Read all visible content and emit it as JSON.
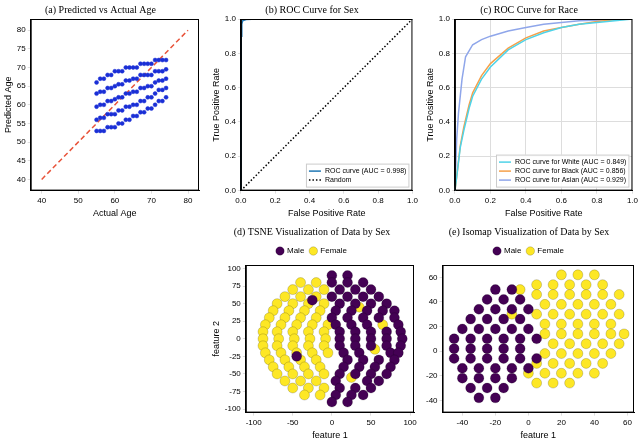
{
  "chart_data": [
    {
      "type": "scatter",
      "title": "(a) Predicted vs Actual Age",
      "x_label": "Actual Age",
      "y_label": "Predicted Age",
      "xlim": [
        37,
        83
      ],
      "xticks": [
        40,
        50,
        60,
        70,
        80
      ],
      "ylim": [
        37,
        83
      ],
      "yticks": [
        40,
        45,
        50,
        55,
        60,
        65,
        70,
        75,
        80
      ],
      "grid": false,
      "series": [
        {
          "color": "#1a2fd6",
          "marker": "circle",
          "x": [
            55,
            55,
            55,
            55,
            55,
            56,
            56,
            56,
            56,
            56,
            57,
            57,
            57,
            57,
            57,
            58,
            58,
            58,
            58,
            58,
            59,
            59,
            59,
            59,
            59,
            60,
            60,
            60,
            60,
            60,
            61,
            61,
            61,
            61,
            61,
            62,
            62,
            62,
            62,
            62,
            63,
            63,
            63,
            63,
            63,
            64,
            64,
            64,
            64,
            64,
            65,
            65,
            65,
            65,
            65,
            66,
            66,
            66,
            66,
            66,
            67,
            67,
            67,
            67,
            67,
            68,
            68,
            68,
            68,
            68,
            69,
            69,
            69,
            69,
            69,
            70,
            70,
            70,
            70,
            70,
            71,
            71,
            71,
            71,
            71,
            72,
            72,
            72,
            72,
            72,
            73,
            73,
            73,
            73,
            73,
            74,
            74,
            74,
            74,
            74
          ],
          "values": [
            53,
            56,
            59.5,
            63,
            66,
            53,
            56.5,
            60,
            63.5,
            67,
            53,
            56.5,
            60,
            63.5,
            67,
            54,
            57.5,
            61,
            64.5,
            68,
            54,
            57.5,
            61,
            64.5,
            68,
            54,
            57.5,
            61.5,
            65,
            69,
            55,
            58.5,
            62,
            65.5,
            69,
            55,
            58.5,
            62,
            65.5,
            69,
            56,
            59.5,
            63,
            66.5,
            70,
            56,
            59.5,
            63,
            66.5,
            70,
            57,
            60,
            63.5,
            67,
            70,
            57,
            60,
            63.5,
            67,
            70,
            58,
            61,
            64.5,
            68,
            71,
            58,
            61,
            64.5,
            68,
            71,
            59,
            62,
            65,
            68,
            71,
            59,
            62,
            65,
            68,
            71,
            60,
            63,
            66,
            69,
            72,
            61,
            64,
            66.5,
            69,
            72,
            61,
            64,
            66.5,
            69,
            72,
            62,
            64.5,
            67,
            69.5,
            72
          ]
        },
        {
          "type": "line",
          "color": "#e8533a",
          "line_style": "dashed",
          "x": [
            40,
            80
          ],
          "values": [
            40,
            80
          ]
        }
      ]
    },
    {
      "type": "line",
      "title": "(b) ROC Curve for Sex",
      "x_label": "False Positive Rate",
      "y_label": "True Positive Rate",
      "xlim": [
        0,
        1
      ],
      "xticks": [
        {
          "value": 0,
          "label": "0.0"
        },
        0.2,
        0.4,
        0.6,
        0.8,
        {
          "value": 1,
          "label": "1.0"
        }
      ],
      "ylim": [
        0,
        1
      ],
      "yticks": [
        {
          "value": 0,
          "label": "0.0"
        },
        0.2,
        0.4,
        0.6,
        0.8,
        {
          "value": 1,
          "label": "1.0"
        }
      ],
      "grid": false,
      "legend": "lower right",
      "series": [
        {
          "name": "ROC curve (AUC = 0.998)",
          "color": "#1f77b4",
          "line_style": "solid",
          "x": [
            0,
            0.002,
            0.005,
            0.01,
            0.03,
            0.1,
            1
          ],
          "values": [
            0,
            0.9,
            0.97,
            0.99,
            0.997,
            1,
            1
          ]
        },
        {
          "name": "Random",
          "color": "#000000",
          "line_style": "dotted",
          "x": [
            0,
            1
          ],
          "values": [
            0,
            1
          ]
        }
      ]
    },
    {
      "type": "line",
      "title": "(c) ROC Curve for Race",
      "x_label": "False Positive Rate",
      "y_label": "True Positive Rate",
      "xlim": [
        0,
        1
      ],
      "xticks": [
        {
          "value": 0,
          "label": "0.0"
        },
        0.2,
        0.4,
        0.6,
        0.8,
        {
          "value": 1,
          "label": "1.0"
        }
      ],
      "ylim": [
        0,
        1
      ],
      "yticks": [
        {
          "value": 0,
          "label": "0.0"
        },
        0.2,
        0.4,
        0.6,
        0.8,
        {
          "value": 1,
          "label": "1.0"
        }
      ],
      "grid": true,
      "legend": "lower right",
      "series": [
        {
          "name": "ROC curve for White (AUC = 0.849)",
          "color": "#4fd3e8",
          "line_style": "solid",
          "x": [
            0,
            0.01,
            0.03,
            0.05,
            0.08,
            0.1,
            0.15,
            0.2,
            0.3,
            0.4,
            0.5,
            0.6,
            0.7,
            0.8,
            0.9,
            1
          ],
          "values": [
            0,
            0.08,
            0.25,
            0.35,
            0.48,
            0.55,
            0.65,
            0.72,
            0.82,
            0.88,
            0.92,
            0.95,
            0.97,
            0.98,
            0.99,
            1
          ]
        },
        {
          "name": "ROC curve for Black (AUC = 0.856)",
          "color": "#f5a04a",
          "line_style": "solid",
          "x": [
            0,
            0.01,
            0.03,
            0.05,
            0.08,
            0.1,
            0.15,
            0.2,
            0.3,
            0.4,
            0.5,
            0.6,
            0.7,
            0.8,
            0.9,
            1
          ],
          "values": [
            0,
            0.08,
            0.26,
            0.37,
            0.5,
            0.57,
            0.67,
            0.74,
            0.83,
            0.89,
            0.93,
            0.95,
            0.97,
            0.985,
            0.995,
            1
          ]
        },
        {
          "name": "ROC curve for Asian (AUC = 0.929)",
          "color": "#8fa6ea",
          "line_style": "solid",
          "x": [
            0,
            0.01,
            0.02,
            0.04,
            0.06,
            0.1,
            0.15,
            0.2,
            0.3,
            0.4,
            0.5,
            0.7,
            1
          ],
          "values": [
            0,
            0.3,
            0.45,
            0.65,
            0.78,
            0.85,
            0.88,
            0.9,
            0.93,
            0.95,
            0.97,
            0.99,
            1
          ]
        }
      ]
    },
    {
      "type": "scatter",
      "title": "(d) TSNE Visualization of Data by Sex",
      "x_label": "feature 1",
      "y_label": "feature 2",
      "xlim": [
        -110,
        105
      ],
      "xticks": [
        -100,
        -50,
        0,
        50,
        100
      ],
      "ylim": [
        -105,
        105
      ],
      "yticks": [
        -100,
        -75,
        -50,
        -25,
        0,
        25,
        50,
        75,
        100
      ],
      "grid": false,
      "legend": "top",
      "series": [
        {
          "name": "Male",
          "color": "#440154",
          "marker": "circle",
          "x": [
            0,
            20,
            0,
            20,
            40,
            10,
            30,
            50,
            0,
            20,
            40,
            60,
            10,
            30,
            50,
            70,
            5,
            25,
            45,
            65,
            80,
            0,
            20,
            40,
            60,
            80,
            5,
            25,
            45,
            85,
            10,
            30,
            50,
            70,
            88,
            10,
            30,
            50,
            70,
            90,
            10,
            30,
            50,
            70,
            88,
            15,
            35,
            75,
            85,
            20,
            40,
            60,
            80,
            15,
            35,
            55,
            75,
            10,
            30,
            50,
            70,
            5,
            45,
            60,
            10,
            30,
            50,
            5,
            25,
            40,
            0,
            20,
            -25,
            -45
          ],
          "values": [
            90,
            90,
            80,
            80,
            80,
            70,
            70,
            70,
            60,
            60,
            60,
            60,
            50,
            50,
            50,
            50,
            40,
            40,
            40,
            40,
            40,
            30,
            30,
            30,
            30,
            30,
            20,
            20,
            20,
            20,
            10,
            10,
            10,
            10,
            10,
            0,
            0,
            0,
            0,
            0,
            -10,
            -10,
            -10,
            -10,
            -10,
            -20,
            -20,
            -20,
            -20,
            -30,
            -30,
            -30,
            -30,
            -40,
            -40,
            -40,
            -40,
            -50,
            -50,
            -50,
            -50,
            -60,
            -60,
            -60,
            -70,
            -70,
            -70,
            -80,
            -80,
            -80,
            -90,
            -90,
            55,
            -25
          ]
        },
        {
          "name": "Female",
          "color": "#fde725",
          "marker": "circle",
          "x": [
            -40,
            -20,
            -50,
            -30,
            -10,
            -60,
            -40,
            -20,
            -70,
            -50,
            -30,
            -10,
            -75,
            -55,
            -35,
            -15,
            -80,
            -60,
            -40,
            -20,
            -85,
            -65,
            -45,
            -25,
            -5,
            -88,
            -70,
            -50,
            -30,
            -10,
            -88,
            -68,
            -48,
            -28,
            -8,
            -88,
            -70,
            -50,
            -30,
            -10,
            -85,
            -65,
            -45,
            -25,
            -5,
            -80,
            -60,
            -40,
            -20,
            -75,
            -55,
            -35,
            -15,
            -70,
            -50,
            -30,
            -10,
            -60,
            -40,
            -20,
            -50,
            -30,
            -10,
            -35,
            -15,
            35,
            55,
            25,
            65
          ],
          "values": [
            80,
            80,
            70,
            70,
            70,
            60,
            60,
            60,
            50,
            50,
            50,
            50,
            40,
            40,
            40,
            40,
            30,
            30,
            30,
            30,
            20,
            20,
            20,
            20,
            20,
            10,
            10,
            10,
            10,
            10,
            0,
            0,
            0,
            0,
            0,
            -10,
            -10,
            -10,
            -10,
            -10,
            -20,
            -20,
            -20,
            -20,
            -20,
            -30,
            -30,
            -30,
            -30,
            -40,
            -40,
            -40,
            -40,
            -50,
            -50,
            -50,
            -50,
            -60,
            -60,
            -60,
            -70,
            -70,
            -70,
            -80,
            -80,
            45,
            -15,
            -55,
            20
          ]
        }
      ]
    },
    {
      "type": "scatter",
      "title": "(e) Isomap Visualization of Data by Sex",
      "x_label": "feature 1",
      "xlim": [
        -52,
        64
      ],
      "xticks": [
        -40,
        -20,
        0,
        20,
        40,
        60
      ],
      "ylim": [
        -50,
        70
      ],
      "yticks": [
        -40,
        -20,
        0,
        20,
        40,
        60
      ],
      "grid": false,
      "legend": "top",
      "series": [
        {
          "name": "Male",
          "color": "#440154",
          "marker": "circle",
          "x": [
            -20,
            -10,
            -25,
            -15,
            -5,
            -30,
            -20,
            -10,
            0,
            -35,
            -25,
            -15,
            -5,
            -40,
            -30,
            -20,
            -10,
            0,
            -45,
            -35,
            -25,
            -15,
            -5,
            5,
            -45,
            -35,
            -25,
            -15,
            -5,
            -45,
            -35,
            -25,
            -15,
            -5,
            5,
            -40,
            -30,
            -20,
            -10,
            0,
            -40,
            -30,
            -20,
            -10,
            -35,
            -25,
            -15,
            -30,
            -20
          ],
          "values": [
            50,
            50,
            42,
            42,
            42,
            34,
            34,
            34,
            34,
            26,
            26,
            26,
            26,
            18,
            18,
            18,
            18,
            18,
            10,
            10,
            10,
            10,
            10,
            10,
            2,
            2,
            2,
            2,
            2,
            -6,
            -6,
            -6,
            -6,
            -6,
            -6,
            -14,
            -14,
            -14,
            -14,
            -14,
            -22,
            -22,
            -22,
            -22,
            -30,
            -30,
            -30,
            -38,
            -38
          ]
        },
        {
          "name": "Female",
          "color": "#fde725",
          "marker": "circle",
          "x": [
            20,
            30,
            40,
            5,
            15,
            25,
            35,
            45,
            5,
            15,
            25,
            35,
            45,
            55,
            10,
            20,
            30,
            40,
            50,
            5,
            15,
            25,
            35,
            45,
            55,
            10,
            20,
            30,
            40,
            50,
            10,
            20,
            30,
            40,
            50,
            58,
            15,
            25,
            35,
            45,
            55,
            10,
            20,
            30,
            40,
            50,
            5,
            15,
            25,
            35,
            45,
            0,
            10,
            20,
            30,
            40,
            5,
            15,
            25,
            -5,
            -10
          ],
          "values": [
            62,
            62,
            62,
            54,
            54,
            54,
            54,
            54,
            46,
            46,
            46,
            46,
            46,
            46,
            38,
            38,
            38,
            38,
            38,
            30,
            30,
            30,
            30,
            30,
            30,
            22,
            22,
            22,
            22,
            22,
            14,
            14,
            14,
            14,
            14,
            14,
            6,
            6,
            6,
            6,
            6,
            -2,
            -2,
            -2,
            -2,
            -2,
            -10,
            -10,
            -10,
            -10,
            -10,
            -18,
            -18,
            -18,
            -18,
            -18,
            -26,
            -26,
            -26,
            50,
            30
          ]
        }
      ]
    }
  ]
}
